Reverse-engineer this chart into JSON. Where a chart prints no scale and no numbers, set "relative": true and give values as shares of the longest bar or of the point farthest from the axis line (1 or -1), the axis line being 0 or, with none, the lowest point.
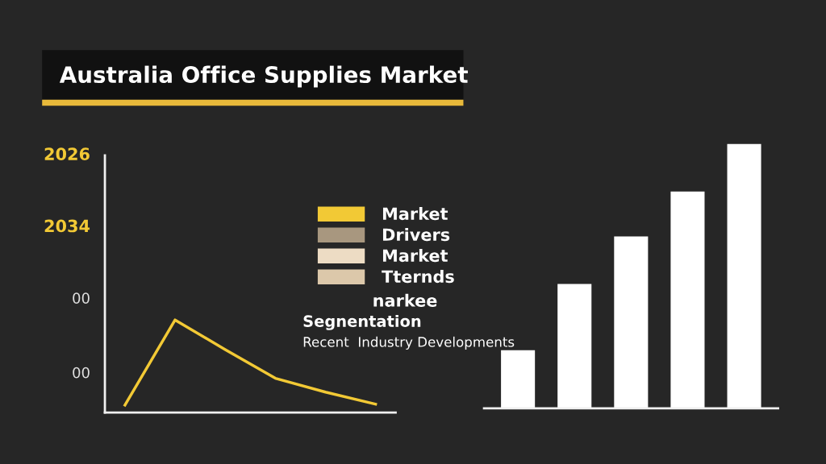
{
  "chart_data": [
    {
      "type": "line",
      "title": "Australia Office Supplies Market",
      "relative": true,
      "categories": [
        null,
        null,
        null,
        null,
        null,
        null
      ],
      "series": [
        {
          "name": "Market",
          "color": "#f2c935",
          "values": [
            0.08,
            1.0,
            0.68,
            0.37,
            0.22,
            0.09
          ]
        },
        {
          "name": "Drivers",
          "color": "#a8977f",
          "values": [
            null,
            null,
            null,
            null,
            null,
            null
          ]
        },
        {
          "name": "Market",
          "color": "#eddcc4",
          "values": [
            null,
            null,
            null,
            null,
            null,
            null
          ]
        },
        {
          "name": "Tternds",
          "color": "#dcc8aa",
          "values": [
            null,
            null,
            null,
            null,
            null,
            null
          ]
        }
      ],
      "legend": "right",
      "marker": "none",
      "line_style": "solid",
      "annotations": [
        "2026",
        "2034",
        "00",
        "00",
        "narkee",
        "Segnentation",
        "Recent  Industry Developments"
      ]
    },
    {
      "type": "bar",
      "relative": true,
      "categories": [
        null,
        null,
        null,
        null,
        null
      ],
      "color": "#ffffff",
      "values": [
        0.22,
        0.47,
        0.65,
        0.82,
        1.0
      ]
    }
  ]
}
